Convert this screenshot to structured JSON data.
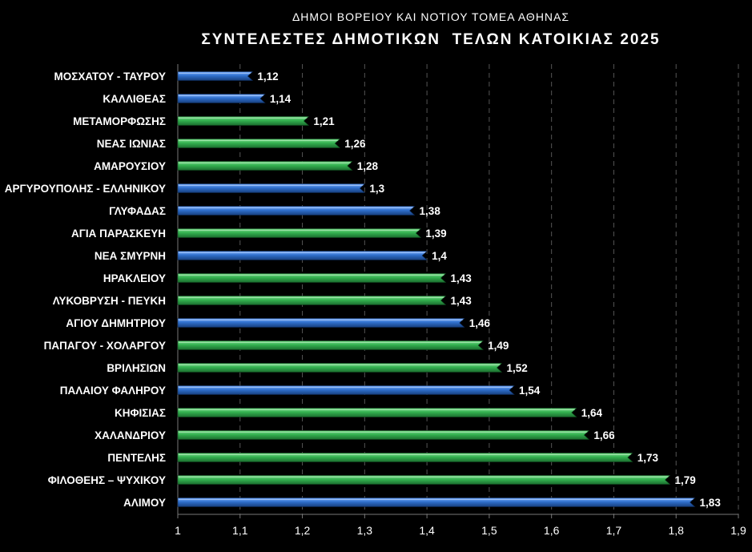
{
  "chart_data": {
    "type": "bar",
    "orientation": "horizontal",
    "subtitle": "ΔΗΜΟΙ ΒΟΡΕΙΟΥ ΚΑΙ ΝΟΤΙΟΥ ΤΟΜΕΑ ΑΘΗΝΑΣ",
    "title": "ΣΥΝΤΕΛΕΣΤΕΣ ΔΗΜΟΤΙΚΩΝ  ΤΕΛΩΝ ΚΑΤΟΙΚΙΑΣ 2025",
    "categories": [
      "ΜΟΣΧΑΤΟΥ - ΤΑΥΡΟΥ",
      "ΚΑΛΛΙΘΕΑΣ",
      "ΜΕΤΑΜΟΡΦΩΣΗΣ",
      "ΝΕΑΣ ΙΩΝΙΑΣ",
      "ΑΜΑΡΟΥΣΙΟΥ",
      "ΑΡΓΥΡΟΥΠΟΛΗΣ - ΕΛΛΗΝΙΚΟΥ",
      "ΓΛΥΦΑΔΑΣ",
      "ΑΓΙΑ ΠΑΡΑΣΚΕΥΗ",
      "ΝΕΑ ΣΜΥΡΝΗ",
      "ΗΡΑΚΛΕΙΟΥ",
      "ΛΥΚΟΒΡΥΣΗ - ΠΕΥΚΗ",
      "ΑΓΙΟΥ ΔΗΜΗΤΡΙΟΥ",
      "ΠΑΠΑΓΟΥ - ΧΟΛΑΡΓΟΥ",
      "ΒΡΙΛΗΣΙΩΝ",
      "ΠΑΛΑΙΟΥ ΦΑΛΗΡΟΥ",
      "ΚΗΦΙΣΙΑΣ",
      "ΧΑΛΑΝΔΡΙΟΥ",
      "ΠΕΝΤΕΛΗΣ",
      "ΦΙΛΟΘΕΗΣ – ΨΥΧΙΚΟΥ",
      "ΑΛΙΜΟΥ"
    ],
    "values": [
      1.12,
      1.14,
      1.21,
      1.26,
      1.28,
      1.3,
      1.38,
      1.39,
      1.4,
      1.43,
      1.43,
      1.46,
      1.49,
      1.52,
      1.54,
      1.64,
      1.66,
      1.73,
      1.79,
      1.83
    ],
    "value_labels": [
      "1,12",
      "1,14",
      "1,21",
      "1,26",
      "1,28",
      "1,3",
      "1,38",
      "1,39",
      "1,4",
      "1,43",
      "1,43",
      "1,46",
      "1,49",
      "1,52",
      "1,54",
      "1,64",
      "1,66",
      "1,73",
      "1,79",
      "1,83"
    ],
    "bar_group": [
      "south",
      "south",
      "north",
      "north",
      "north",
      "south",
      "south",
      "north",
      "south",
      "north",
      "north",
      "south",
      "north",
      "north",
      "south",
      "north",
      "north",
      "north",
      "north",
      "south"
    ],
    "group_colors": {
      "north": "#2fa84a",
      "south": "#2e6fc4"
    },
    "x_ticks": [
      "1",
      "1,1",
      "1,2",
      "1,3",
      "1,4",
      "1,5",
      "1,6",
      "1,7",
      "1,8",
      "1,9"
    ],
    "x_tick_values": [
      1,
      1.1,
      1.2,
      1.3,
      1.4,
      1.5,
      1.6,
      1.7,
      1.8,
      1.9
    ],
    "xlim": [
      1,
      1.9
    ],
    "xlabel": "",
    "ylabel": "",
    "grid": "vertical-dashed",
    "background": "#000000"
  }
}
